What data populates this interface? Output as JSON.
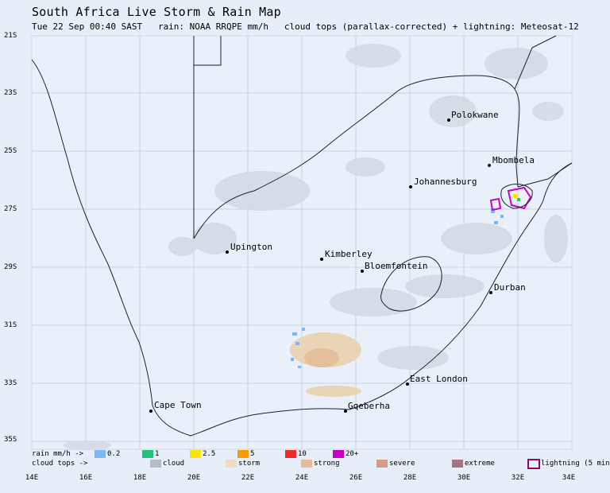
{
  "header": {
    "title": "South Africa Live Storm & Rain Map",
    "subtitle": "Tue 22 Sep 00:40 SAST   rain: NOAA RRQPE mm/h   cloud tops (parallax-corrected) + lightning: Meteosat-12"
  },
  "axes": {
    "y_labels": [
      "21S",
      "23S",
      "25S",
      "27S",
      "29S",
      "31S",
      "33S",
      "35S"
    ],
    "x_labels": [
      "14E",
      "16E",
      "18E",
      "20E",
      "22E",
      "24E",
      "26E",
      "28E",
      "30E",
      "32E",
      "34E"
    ]
  },
  "cities": [
    {
      "name": "Polokwane"
    },
    {
      "name": "Mbombela"
    },
    {
      "name": "Johannesburg"
    },
    {
      "name": "Upington"
    },
    {
      "name": "Kimberley"
    },
    {
      "name": "Bloemfontein"
    },
    {
      "name": "Durban"
    },
    {
      "name": "East London"
    },
    {
      "name": "Cape Town"
    },
    {
      "name": "Gqeberha"
    }
  ],
  "legend": {
    "rain_label": "rain mm/h ->",
    "rain_items": [
      {
        "label": "0.2",
        "color": "#7ab8f5"
      },
      {
        "label": "1",
        "color": "#22c27a"
      },
      {
        "label": "2.5",
        "color": "#f7e700"
      },
      {
        "label": "5",
        "color": "#f79a00"
      },
      {
        "label": "10",
        "color": "#f02a2a"
      },
      {
        "label": "20+",
        "color": "#c800c8"
      }
    ],
    "cloud_label": "cloud tops ->",
    "cloud_items": [
      {
        "label": "cloud",
        "color": "#b4bcc8"
      },
      {
        "label": "storm",
        "color": "#f0dcc0"
      },
      {
        "label": "strong",
        "color": "#e3bc98"
      },
      {
        "label": "severe",
        "color": "#d49a8c"
      },
      {
        "label": "extreme",
        "color": "#a87284"
      }
    ],
    "lightning_label": "lightning (5 min",
    "lightning_color": "#8b0a6e"
  }
}
